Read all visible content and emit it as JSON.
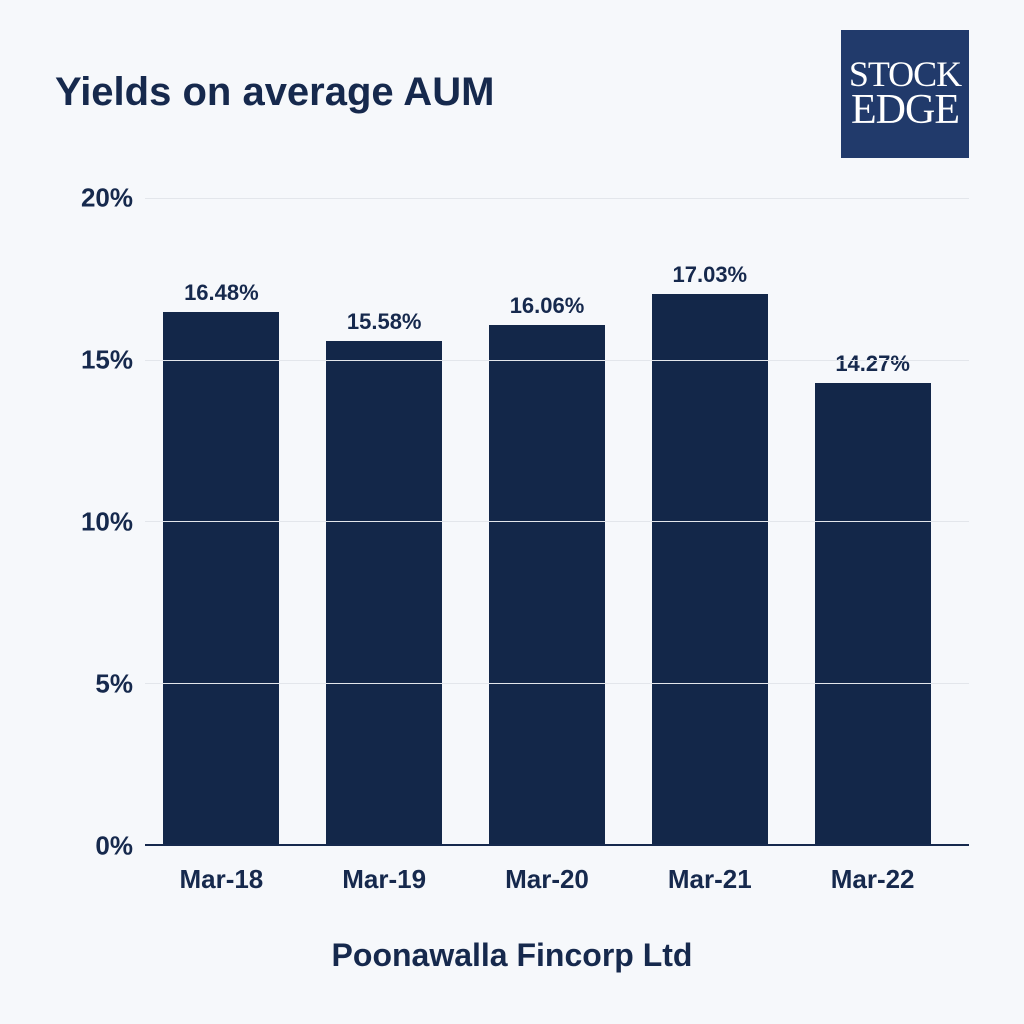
{
  "title": "Yields on average AUM",
  "footer": "Poonawalla Fincorp Ltd",
  "logo": {
    "line1": "STOCK",
    "line2": "EDGE",
    "bg": "#213a6b",
    "fg": "#ffffff"
  },
  "colors": {
    "background": "#f6f8fb",
    "text": "#16294d",
    "bar": "#132749",
    "grid": "#e3e6eb",
    "axis": "#16294d"
  },
  "chart": {
    "type": "bar",
    "ylim": [
      0,
      20
    ],
    "ytick_step": 5,
    "yticks": [
      0,
      5,
      10,
      15,
      20
    ],
    "ytick_suffix": "%",
    "categories": [
      "Mar-18",
      "Mar-19",
      "Mar-20",
      "Mar-21",
      "Mar-22"
    ],
    "values": [
      16.48,
      15.58,
      16.06,
      17.03,
      14.27
    ],
    "value_labels": [
      "16.48%",
      "15.58%",
      "16.06%",
      "17.03%",
      "14.27%"
    ],
    "bar_width": 0.76,
    "title_fontsize": 40,
    "tick_fontsize": 26,
    "value_label_fontsize": 22,
    "footer_fontsize": 32
  }
}
